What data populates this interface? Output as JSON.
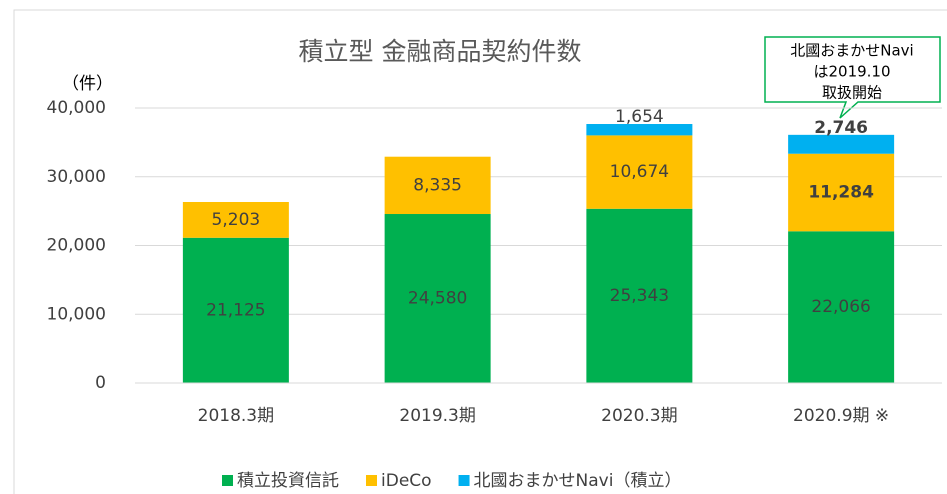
{
  "chart_data": {
    "type": "stacked_bar",
    "title": "積立型 金融商品契約件数",
    "y_axis_label": "（件）",
    "categories": [
      "2018.3期",
      "2019.3期",
      "2020.3期",
      "2020.9期 ※"
    ],
    "series": [
      {
        "name": "積立投資信託",
        "color": "#00b050",
        "values": [
          21125,
          24580,
          25343,
          22066
        ],
        "value_labels": [
          "21,125",
          "24,580",
          "25,343",
          "22,066"
        ]
      },
      {
        "name": "iDeCo",
        "color": "#ffc000",
        "values": [
          5203,
          8335,
          10674,
          11284
        ],
        "value_labels": [
          "5,203",
          "8,335",
          "10,674",
          "11,284"
        ]
      },
      {
        "name": "北國おまかせNavi（積立）",
        "color": "#00b0f0",
        "values": [
          null,
          null,
          1654,
          2746
        ],
        "value_labels": [
          null,
          null,
          "1,654",
          "2,746"
        ]
      }
    ],
    "ylim": [
      0,
      40000
    ],
    "yticks": [
      0,
      {
        "value": 10000,
        "label": "10,000"
      },
      {
        "value": 20000,
        "label": "20,000"
      },
      {
        "value": 30000,
        "label": "30,000"
      },
      {
        "value": 40000,
        "label": "40,000"
      }
    ],
    "grid": true,
    "legend": "bottom",
    "annotation": [
      "北國おまかせNavi",
      "は2019.10",
      "取扱開始"
    ]
  }
}
